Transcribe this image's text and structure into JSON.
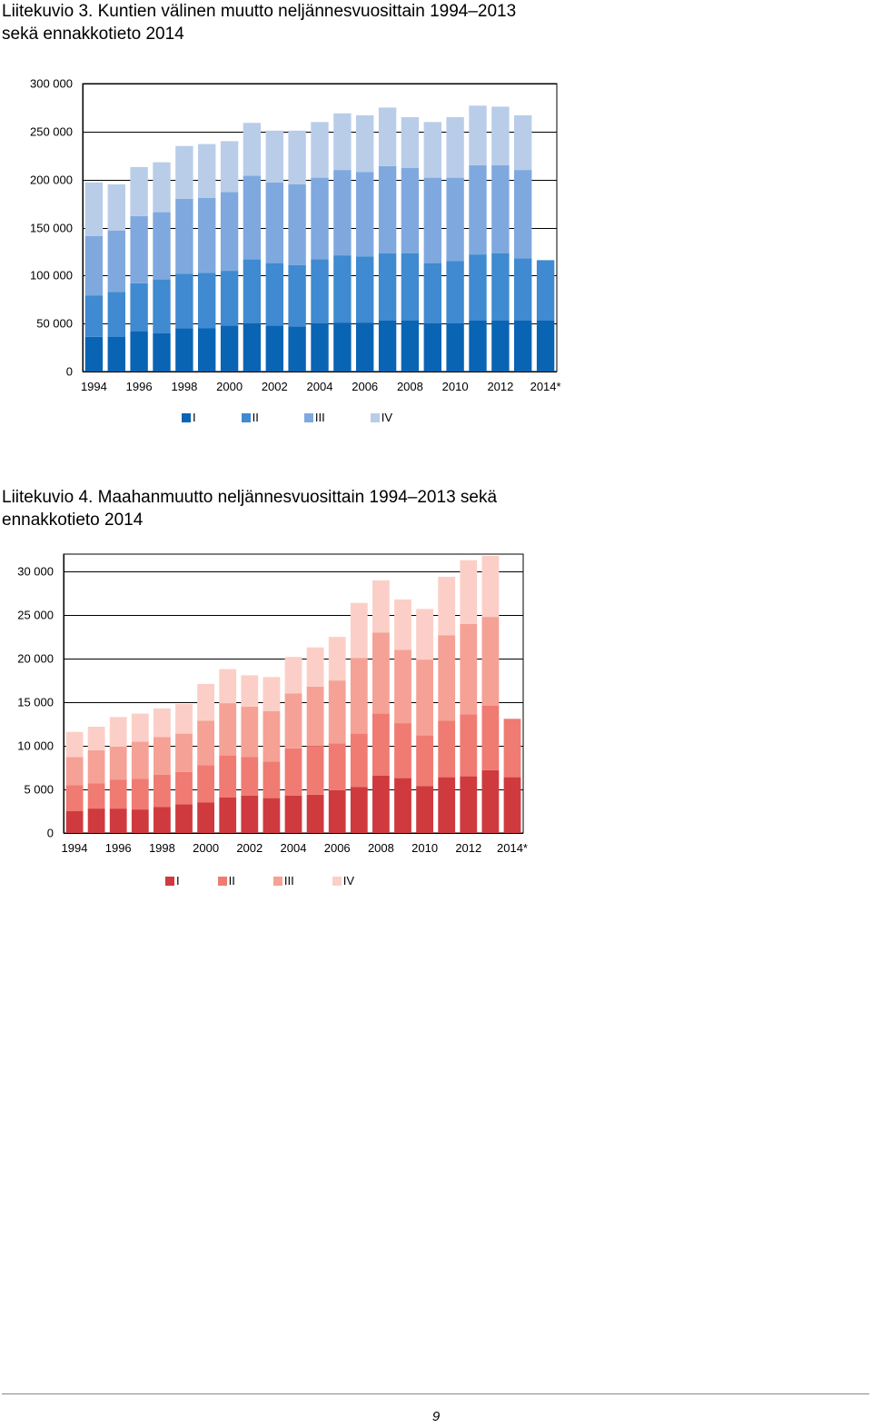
{
  "figures": [
    {
      "title_line1": "Liitekuvio 3. Kuntien välinen muutto neljännesvuosittain 1994–2013",
      "title_line2": "sekä ennakkotieto 2014",
      "legend": [
        "I",
        "II",
        "III",
        "IV"
      ]
    },
    {
      "title_line1": "Liitekuvio 4. Maahanmuutto neljännesvuosittain 1994–2013 sekä",
      "title_line2": "ennakkotieto 2014",
      "legend": [
        "I",
        "II",
        "III",
        "IV"
      ]
    }
  ],
  "page_number": "9",
  "chart_data": [
    {
      "type": "bar",
      "stacked": true,
      "title": "Liitekuvio 3. Kuntien välinen muutto neljännesvuosittain 1994–2013 sekä ennakkotieto 2014",
      "xlabel": "",
      "ylabel": "",
      "ylim": [
        0,
        300000
      ],
      "yticks": [
        0,
        50000,
        100000,
        150000,
        200000,
        250000,
        300000
      ],
      "ytick_labels": [
        "0",
        "50 000",
        "100 000",
        "150 000",
        "200 000",
        "250 000",
        "300 000"
      ],
      "categories": [
        "1994",
        "1995",
        "1996",
        "1997",
        "1998",
        "1999",
        "2000",
        "2001",
        "2002",
        "2003",
        "2004",
        "2005",
        "2006",
        "2007",
        "2008",
        "2009",
        "2010",
        "2011",
        "2012",
        "2013",
        "2014*"
      ],
      "xtick_labels": [
        "1994",
        "",
        "1996",
        "",
        "1998",
        "",
        "2000",
        "",
        "2002",
        "",
        "2004",
        "",
        "2006",
        "",
        "2008",
        "",
        "2010",
        "",
        "2012",
        "",
        "2014*"
      ],
      "grid": true,
      "legend_position": "bottom",
      "series": [
        {
          "name": "I",
          "color": "#0a64b4",
          "values": [
            36000,
            36000,
            42000,
            40000,
            45000,
            45000,
            48000,
            50000,
            48000,
            47000,
            50000,
            51000,
            51000,
            53000,
            53000,
            50000,
            50000,
            53000,
            53000,
            53000,
            53000
          ]
        },
        {
          "name": "II",
          "color": "#3f8ad0",
          "values": [
            43000,
            47000,
            50000,
            56000,
            57000,
            58000,
            57000,
            67000,
            65000,
            64000,
            67000,
            70000,
            69000,
            70000,
            70000,
            63000,
            65000,
            69000,
            70000,
            65000,
            63000
          ]
        },
        {
          "name": "III",
          "color": "#7fa9de",
          "values": [
            62000,
            64000,
            70000,
            70000,
            78000,
            78000,
            82000,
            87000,
            84000,
            84000,
            85000,
            89000,
            88000,
            91000,
            89000,
            89000,
            87000,
            93000,
            92000,
            92000,
            0
          ]
        },
        {
          "name": "IV",
          "color": "#b9cde9",
          "values": [
            56000,
            48000,
            51000,
            52000,
            55000,
            56000,
            53000,
            55000,
            54000,
            56000,
            58000,
            59000,
            59000,
            61000,
            53000,
            58000,
            63000,
            62000,
            61000,
            57000,
            0
          ]
        }
      ]
    },
    {
      "type": "bar",
      "stacked": true,
      "title": "Liitekuvio 4. Maahanmuutto neljännesvuosittain 1994–2013 sekä ennakkotieto 2014",
      "xlabel": "",
      "ylabel": "",
      "ylim": [
        0,
        32000
      ],
      "yticks": [
        0,
        5000,
        10000,
        15000,
        20000,
        25000,
        30000
      ],
      "ytick_labels": [
        "0",
        "5 000",
        "10 000",
        "15 000",
        "20 000",
        "25 000",
        "30 000"
      ],
      "categories": [
        "1994",
        "1995",
        "1996",
        "1997",
        "1998",
        "1999",
        "2000",
        "2001",
        "2002",
        "2003",
        "2004",
        "2005",
        "2006",
        "2007",
        "2008",
        "2009",
        "2010",
        "2011",
        "2012",
        "2013",
        "2014*"
      ],
      "xtick_labels": [
        "1994",
        "",
        "1996",
        "",
        "1998",
        "",
        "2000",
        "",
        "2002",
        "",
        "2004",
        "",
        "2006",
        "",
        "2008",
        "",
        "2010",
        "",
        "2012",
        "",
        "2014*"
      ],
      "grid": true,
      "legend_position": "bottom",
      "series": [
        {
          "name": "I",
          "color": "#cf3a3f",
          "values": [
            2500,
            2800,
            2800,
            2700,
            3000,
            3300,
            3500,
            4100,
            4300,
            4000,
            4300,
            4400,
            4900,
            5300,
            6600,
            6300,
            5400,
            6400,
            6500,
            7200,
            6400
          ]
        },
        {
          "name": "II",
          "color": "#ef7b72",
          "values": [
            3000,
            2900,
            3300,
            3500,
            3700,
            3700,
            4300,
            4800,
            4400,
            4200,
            5400,
            5600,
            5400,
            6100,
            7100,
            6300,
            5800,
            6500,
            7100,
            7400,
            6700
          ]
        },
        {
          "name": "III",
          "color": "#f5a196",
          "values": [
            3200,
            3800,
            3800,
            4300,
            4300,
            4400,
            5100,
            6000,
            5800,
            5800,
            6300,
            6800,
            7200,
            8700,
            9300,
            8400,
            8700,
            9800,
            10400,
            10200,
            0
          ]
        },
        {
          "name": "IV",
          "color": "#fbcfc7",
          "values": [
            2900,
            2700,
            3400,
            3200,
            3300,
            3400,
            4200,
            3900,
            3600,
            3900,
            4200,
            4500,
            5000,
            6300,
            6000,
            5800,
            5800,
            6700,
            7300,
            7000,
            0
          ]
        }
      ]
    }
  ]
}
